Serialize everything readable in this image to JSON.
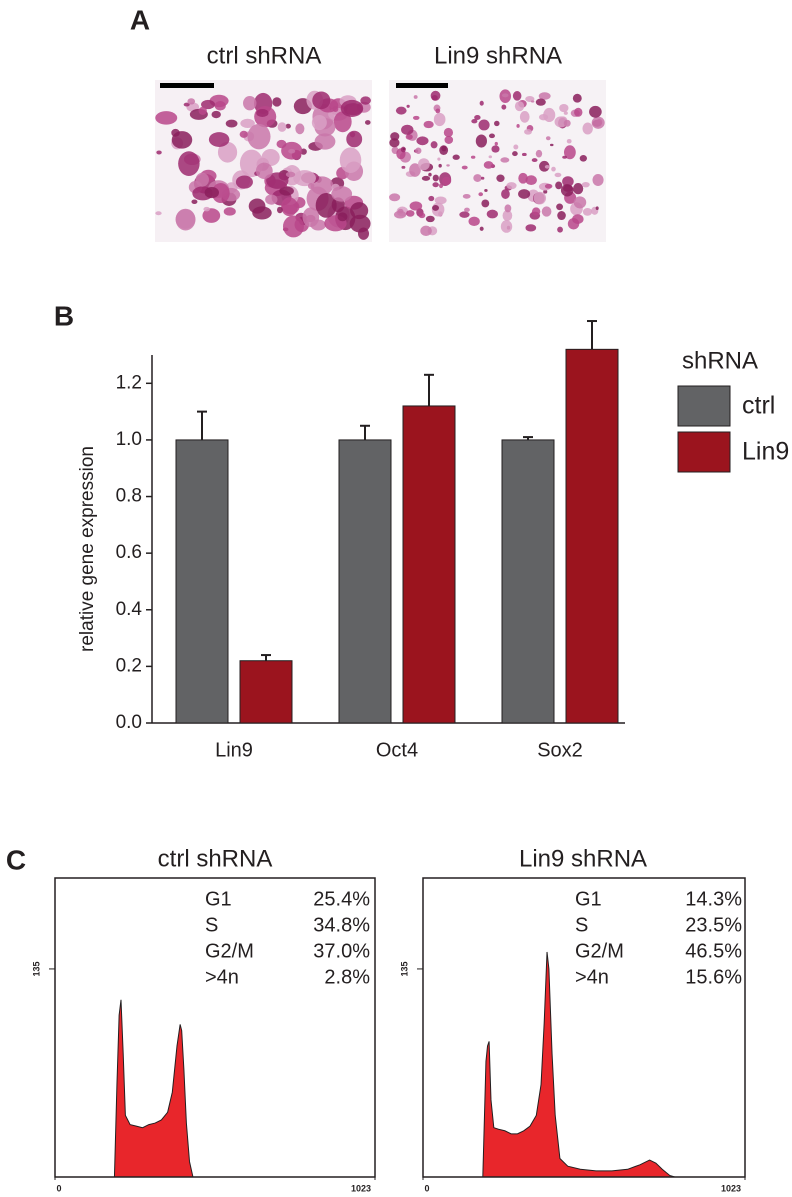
{
  "panel_a": {
    "label": "A",
    "images": [
      {
        "title": "ctrl shRNA"
      },
      {
        "title": "Lin9 shRNA"
      }
    ]
  },
  "panel_b": {
    "label": "B"
  },
  "panel_c": {
    "label": "C"
  },
  "chart_data": [
    {
      "type": "bar",
      "y_label": "relative gene expression",
      "legend_title": "shRNA",
      "legend": "right",
      "categories": [
        "Lin9",
        "Oct4",
        "Sox2"
      ],
      "series": [
        {
          "name": "ctrl",
          "color": "#626365",
          "values": [
            1.0,
            1.0,
            1.0
          ],
          "errors": [
            0.1,
            0.05,
            0.01
          ]
        },
        {
          "name": "Lin9",
          "color": "#9b141e",
          "values": [
            0.22,
            1.12,
            1.32
          ],
          "errors": [
            0.02,
            0.11,
            0.1
          ]
        }
      ],
      "ylim": [
        0,
        1.3
      ],
      "yticks": [
        {
          "value": 0,
          "label": "0.0"
        },
        0.2,
        0.4,
        0.6,
        0.8,
        {
          "value": 1,
          "label": "1.0"
        },
        1.2
      ]
    },
    {
      "type": "area",
      "title": "ctrl shRNA",
      "color": "#e8262b",
      "x": [
        0,
        190,
        198,
        205,
        211,
        218,
        225,
        240,
        260,
        280,
        300,
        320,
        340,
        360,
        375,
        390,
        400,
        405,
        412,
        420,
        430,
        441,
        460,
        1023
      ],
      "values": [
        0,
        0,
        60,
        105,
        115,
        80,
        40,
        34,
        33,
        32,
        34,
        35,
        37,
        42,
        55,
        85,
        99,
        95,
        70,
        35,
        10,
        0,
        0,
        0
      ],
      "xlim": [
        0,
        1023
      ],
      "ylim": [
        0,
        194
      ],
      "xticks": [
        0,
        1023
      ],
      "yticks": [
        135
      ],
      "annotations": [
        [
          "G1",
          "25.4%"
        ],
        [
          "S",
          "34.8%"
        ],
        [
          "G2/M",
          "37.0%"
        ],
        [
          ">4n",
          "2.8%"
        ]
      ]
    },
    {
      "type": "area",
      "title": "Lin9 shRNA",
      "color": "#e8262b",
      "x": [
        0,
        190,
        194,
        200,
        205,
        210,
        216,
        225,
        240,
        260,
        280,
        300,
        320,
        340,
        360,
        375,
        385,
        394,
        400,
        410,
        420,
        435,
        460,
        500,
        550,
        600,
        650,
        690,
        710,
        720,
        740,
        760,
        784,
        800,
        1023
      ],
      "values": [
        0,
        0,
        30,
        75,
        85,
        88,
        50,
        32,
        31,
        30,
        28,
        28,
        30,
        33,
        40,
        60,
        100,
        146,
        135,
        80,
        40,
        12,
        7,
        5,
        4,
        4,
        5,
        8,
        10,
        11,
        9,
        5,
        1,
        0,
        0
      ],
      "xlim": [
        0,
        1023
      ],
      "ylim": [
        0,
        194
      ],
      "xticks": [
        0,
        1023
      ],
      "yticks": [
        135
      ],
      "annotations": [
        [
          "G1",
          "14.3%"
        ],
        [
          "S",
          "23.5%"
        ],
        [
          "G2/M",
          "46.5%"
        ],
        [
          ">4n",
          "15.6%"
        ]
      ]
    }
  ]
}
